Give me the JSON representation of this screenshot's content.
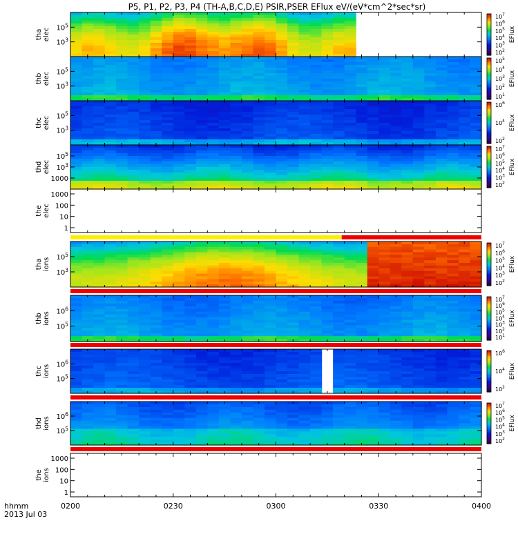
{
  "title": "P5, P1, P2, P3, P4 (TH-A,B,C,D,E) PSIR,PSER EFlux eV/(eV*cm^2*sec*sr)",
  "xaxis": {
    "unit_label": "hhmm",
    "date_label": "2013 Jul 03",
    "ticks": [
      "0200",
      "0230",
      "0300",
      "0330",
      "0400"
    ]
  },
  "colorbar_label": "EFlux",
  "chart_data": [
    {
      "type": "heatmap",
      "name": "tha_elec",
      "ylabel": [
        "tha",
        "elec"
      ],
      "yticks": [
        "10^5",
        "10^3"
      ],
      "cbar_ticks": [
        "10^7",
        "10^6",
        "10^5",
        "10^4",
        "10^3",
        "10^2"
      ],
      "data_coverage": [
        0.0,
        0.708
      ]
    },
    {
      "type": "heatmap",
      "name": "thb_elec",
      "ylabel": [
        "thb",
        "elec"
      ],
      "yticks": [
        "10^5",
        "10^3"
      ],
      "cbar_ticks": [
        "10^5",
        "10^4",
        "10^3",
        "10^2",
        "10^1"
      ],
      "data_coverage": [
        0.0,
        1.0
      ]
    },
    {
      "type": "heatmap",
      "name": "thc_elec",
      "ylabel": [
        "thc",
        "elec"
      ],
      "yticks": [
        "10^5",
        "10^3"
      ],
      "cbar_ticks": [
        "10^6",
        "10^4",
        "10^2"
      ],
      "data_coverage": [
        0.0,
        1.0
      ]
    },
    {
      "type": "heatmap",
      "name": "thd_elec",
      "ylabel": [
        "thd",
        "elec"
      ],
      "yticks": [
        "10^5",
        "10^3",
        "1000"
      ],
      "cbar_ticks": [
        "10^7",
        "10^6",
        "10^5",
        "10^4",
        "10^3",
        "10^2"
      ],
      "data_coverage": [
        0.0,
        1.0
      ]
    },
    {
      "type": "heatmap",
      "name": "the_elec",
      "ylabel": [
        "the",
        "elec"
      ],
      "yticks": [
        "1000",
        "100",
        "10",
        "1"
      ],
      "cbar_ticks": [],
      "data_coverage": []
    },
    {
      "type": "heatmap",
      "name": "tha_ions",
      "ylabel": [
        "tha",
        "ions"
      ],
      "yticks": [
        "10^5",
        "10^3"
      ],
      "cbar_ticks": [
        "10^7",
        "10^6",
        "10^5",
        "10^4",
        "10^3",
        "10^2"
      ],
      "data_coverage": [
        0.0,
        1.0
      ]
    },
    {
      "type": "heatmap",
      "name": "thb_ions",
      "ylabel": [
        "thb",
        "ions"
      ],
      "yticks": [
        "10^6",
        "10^5"
      ],
      "cbar_ticks": [
        "10^7",
        "10^6",
        "10^5",
        "10^4",
        "10^3",
        "10^2",
        "10^1"
      ],
      "data_coverage": [
        0.0,
        1.0
      ]
    },
    {
      "type": "heatmap",
      "name": "thc_ions",
      "ylabel": [
        "thc",
        "ions"
      ],
      "yticks": [
        "10^6",
        "10^5"
      ],
      "cbar_ticks": [
        "10^6",
        "10^4",
        "10^2"
      ],
      "data_coverage": [
        0.0,
        0.6
      ],
      "data_coverage_2": [
        0.65,
        1.0
      ]
    },
    {
      "type": "heatmap",
      "name": "thd_ions",
      "ylabel": [
        "thd",
        "ions"
      ],
      "yticks": [
        "10^6",
        "10^5"
      ],
      "cbar_ticks": [
        "10^7",
        "10^6",
        "10^5",
        "10^4",
        "10^3",
        "10^2"
      ],
      "data_coverage": [
        0.0,
        1.0
      ]
    },
    {
      "type": "heatmap",
      "name": "the_ions",
      "ylabel": [
        "the",
        "ions"
      ],
      "yticks": [
        "1000",
        "100",
        "10",
        "1"
      ],
      "cbar_ticks": [],
      "data_coverage": []
    }
  ]
}
